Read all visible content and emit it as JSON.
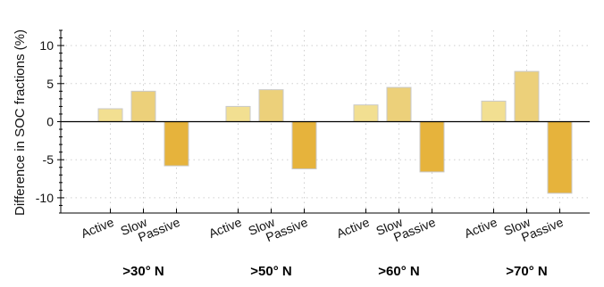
{
  "chart_data": {
    "type": "bar",
    "ylabel": "Difference in SOC fractions (%)",
    "ylim": [
      -12,
      12
    ],
    "yticks": [
      10,
      5,
      0,
      -5,
      -10
    ],
    "ytick_labels": [
      "10",
      "5",
      "0",
      "-5",
      "-10"
    ],
    "grid": true,
    "groups": [
      ">30° N",
      ">50° N",
      ">60° N",
      ">70° N"
    ],
    "categories": [
      "Active",
      "Slow",
      "Passive"
    ],
    "series": [
      {
        "values": [
          1.7,
          4.0,
          -5.8
        ]
      },
      {
        "values": [
          2.0,
          4.2,
          -6.2
        ]
      },
      {
        "values": [
          2.2,
          4.5,
          -6.6
        ]
      },
      {
        "values": [
          2.7,
          6.6,
          -9.4
        ]
      }
    ],
    "colors": {
      "Active": "#f2df91",
      "Slow": "#ecd07a",
      "Passive": "#e6b33c",
      "edge": "#c9c9c9",
      "grid": "#cfcfcf",
      "zero_line": "#000000"
    }
  }
}
